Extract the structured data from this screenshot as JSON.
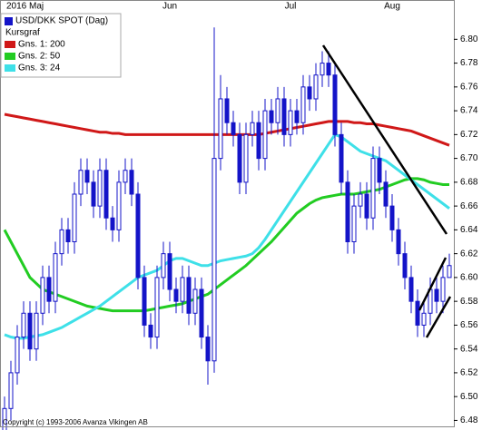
{
  "chart_data": {
    "type": "candlestick",
    "legend_heading": "Kursgraf",
    "footer": "Copyright (c) 1993-2006 Avanza Vikingen AB",
    "categories": [
      "2016 Maj",
      null,
      null,
      null,
      null,
      null,
      null,
      null,
      null,
      null,
      null,
      null,
      null,
      null,
      null,
      null,
      null,
      null,
      null,
      null,
      null,
      null,
      null,
      null,
      null,
      null,
      "Jun",
      null,
      null,
      null,
      null,
      null,
      null,
      null,
      null,
      null,
      null,
      null,
      null,
      null,
      null,
      null,
      null,
      null,
      null,
      "Jul",
      null,
      null,
      null,
      null,
      null,
      null,
      null,
      null,
      null,
      null,
      null,
      null,
      null,
      null,
      null,
      "Aug",
      null,
      null,
      null,
      null,
      null,
      null,
      null,
      null,
      null
    ],
    "candles": {
      "name": "USD/DKK SPOT (Dag)",
      "color": "#1414c8",
      "open": [
        6.47,
        6.49,
        6.52,
        6.55,
        6.57,
        6.54,
        6.57,
        6.6,
        6.58,
        6.62,
        6.64,
        6.63,
        6.67,
        6.69,
        6.68,
        6.66,
        6.69,
        6.65,
        6.64,
        6.68,
        6.69,
        6.67,
        6.6,
        6.56,
        6.55,
        6.6,
        6.62,
        6.59,
        6.58,
        6.6,
        6.57,
        6.59,
        6.55,
        6.53,
        6.7,
        6.75,
        6.73,
        6.72,
        6.68,
        6.72,
        6.73,
        6.7,
        6.74,
        6.73,
        6.75,
        6.72,
        6.74,
        6.73,
        6.76,
        6.75,
        6.77,
        6.78,
        6.77,
        6.72,
        6.68,
        6.63,
        6.66,
        6.67,
        6.65,
        6.7,
        6.68,
        6.66,
        6.64,
        6.62,
        6.6,
        6.58,
        6.56,
        6.57,
        6.59,
        6.58,
        6.6
      ],
      "high": [
        6.5,
        6.53,
        6.56,
        6.58,
        6.58,
        6.58,
        6.61,
        6.61,
        6.63,
        6.65,
        6.65,
        6.68,
        6.7,
        6.7,
        6.69,
        6.7,
        6.7,
        6.66,
        6.69,
        6.7,
        6.7,
        6.68,
        6.61,
        6.57,
        6.61,
        6.63,
        6.63,
        6.6,
        6.61,
        6.61,
        6.6,
        6.6,
        6.56,
        6.81,
        6.77,
        6.76,
        6.74,
        6.73,
        6.73,
        6.74,
        6.74,
        6.75,
        6.75,
        6.76,
        6.76,
        6.75,
        6.75,
        6.77,
        6.77,
        6.78,
        6.79,
        6.79,
        6.78,
        6.73,
        6.69,
        6.67,
        6.68,
        6.68,
        6.71,
        6.71,
        6.69,
        6.67,
        6.65,
        6.63,
        6.61,
        6.59,
        6.58,
        6.6,
        6.6,
        6.61,
        6.62
      ],
      "low": [
        6.46,
        6.48,
        6.51,
        6.54,
        6.53,
        6.53,
        6.56,
        6.57,
        6.57,
        6.61,
        6.62,
        6.62,
        6.66,
        6.67,
        6.65,
        6.65,
        6.64,
        6.63,
        6.63,
        6.67,
        6.66,
        6.59,
        6.55,
        6.54,
        6.54,
        6.59,
        6.58,
        6.57,
        6.57,
        6.56,
        6.56,
        6.54,
        6.51,
        6.52,
        6.69,
        6.72,
        6.71,
        6.67,
        6.67,
        6.71,
        6.69,
        6.69,
        6.72,
        6.72,
        6.71,
        6.71,
        6.72,
        6.72,
        6.74,
        6.74,
        6.76,
        6.76,
        6.71,
        6.67,
        6.62,
        6.62,
        6.65,
        6.64,
        6.64,
        6.67,
        6.65,
        6.63,
        6.61,
        6.59,
        6.57,
        6.55,
        6.55,
        6.56,
        6.57,
        6.57,
        6.6
      ],
      "close": [
        6.49,
        6.52,
        6.55,
        6.57,
        6.54,
        6.57,
        6.6,
        6.58,
        6.62,
        6.64,
        6.63,
        6.67,
        6.69,
        6.68,
        6.66,
        6.69,
        6.65,
        6.64,
        6.68,
        6.69,
        6.67,
        6.6,
        6.56,
        6.55,
        6.6,
        6.62,
        6.59,
        6.58,
        6.6,
        6.57,
        6.59,
        6.55,
        6.53,
        6.7,
        6.75,
        6.73,
        6.72,
        6.68,
        6.72,
        6.73,
        6.7,
        6.74,
        6.73,
        6.75,
        6.72,
        6.74,
        6.73,
        6.76,
        6.75,
        6.77,
        6.78,
        6.77,
        6.72,
        6.68,
        6.63,
        6.66,
        6.67,
        6.65,
        6.7,
        6.68,
        6.66,
        6.64,
        6.62,
        6.6,
        6.58,
        6.56,
        6.57,
        6.59,
        6.58,
        6.6,
        6.61
      ]
    },
    "series": [
      {
        "name": "Gns. 1: 200",
        "color": "#d01818",
        "values": [
          6.737,
          6.736,
          6.735,
          6.734,
          6.733,
          6.732,
          6.731,
          6.73,
          6.729,
          6.728,
          6.727,
          6.726,
          6.725,
          6.724,
          6.723,
          6.722,
          6.722,
          6.721,
          6.721,
          6.72,
          6.72,
          6.72,
          6.72,
          6.72,
          6.72,
          6.72,
          6.72,
          6.72,
          6.72,
          6.72,
          6.72,
          6.72,
          6.72,
          6.72,
          6.72,
          6.72,
          6.72,
          6.72,
          6.72,
          6.72,
          6.72,
          6.721,
          6.722,
          6.723,
          6.724,
          6.725,
          6.726,
          6.727,
          6.728,
          6.729,
          6.73,
          6.731,
          6.731,
          6.731,
          6.731,
          6.73,
          6.73,
          6.729,
          6.729,
          6.728,
          6.727,
          6.726,
          6.725,
          6.724,
          6.723,
          6.721,
          6.719,
          6.717,
          6.715,
          6.713,
          6.711
        ]
      },
      {
        "name": "Gns. 2: 50",
        "color": "#22cc22",
        "values": [
          6.64,
          6.63,
          6.62,
          6.61,
          6.6,
          6.595,
          6.59,
          6.588,
          6.586,
          6.584,
          6.582,
          6.58,
          6.578,
          6.576,
          6.575,
          6.574,
          6.573,
          6.572,
          6.572,
          6.572,
          6.572,
          6.572,
          6.572,
          6.573,
          6.574,
          6.575,
          6.576,
          6.577,
          6.578,
          6.58,
          6.582,
          6.584,
          6.586,
          6.59,
          6.594,
          6.598,
          6.602,
          6.606,
          6.61,
          6.615,
          6.62,
          6.625,
          6.63,
          6.636,
          6.642,
          6.648,
          6.654,
          6.658,
          6.662,
          6.665,
          6.667,
          6.668,
          6.669,
          6.67,
          6.67,
          6.67,
          6.671,
          6.672,
          6.673,
          6.674,
          6.676,
          6.678,
          6.68,
          6.682,
          6.683,
          6.683,
          6.682,
          6.68,
          6.679,
          6.678,
          6.678
        ]
      },
      {
        "name": "Gns. 3: 24",
        "color": "#3ee0e8",
        "values": [
          6.552,
          6.55,
          6.549,
          6.549,
          6.55,
          6.551,
          6.552,
          6.554,
          6.556,
          6.558,
          6.561,
          6.564,
          6.567,
          6.57,
          6.573,
          6.576,
          6.58,
          6.584,
          6.588,
          6.592,
          6.596,
          6.6,
          6.602,
          6.604,
          6.606,
          6.61,
          6.614,
          6.616,
          6.616,
          6.614,
          6.612,
          6.61,
          6.61,
          6.612,
          6.614,
          6.615,
          6.616,
          6.617,
          6.618,
          6.62,
          6.625,
          6.632,
          6.64,
          6.648,
          6.656,
          6.664,
          6.672,
          6.68,
          6.688,
          6.696,
          6.704,
          6.712,
          6.72,
          6.718,
          6.714,
          6.71,
          6.706,
          6.704,
          6.702,
          6.7,
          6.698,
          6.694,
          6.69,
          6.686,
          6.682,
          6.678,
          6.674,
          6.67,
          6.666,
          6.662,
          6.658
        ]
      }
    ],
    "ylim": [
      6.475,
      6.833
    ],
    "yticks": [
      6.48,
      {
        "value": 6.5,
        "label": "6.50"
      },
      6.52,
      6.54,
      6.56,
      6.58,
      {
        "value": 6.6,
        "label": "6.60"
      },
      6.62,
      6.64,
      6.66,
      6.68,
      {
        "value": 6.7,
        "label": "6.70"
      },
      6.72,
      6.74,
      6.76,
      6.78,
      {
        "value": 6.8,
        "label": "6.80"
      }
    ]
  }
}
